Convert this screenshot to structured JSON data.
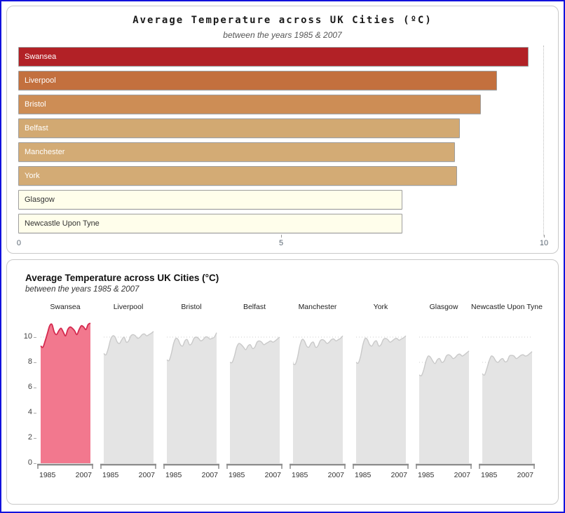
{
  "page": {
    "border_color": "#1212dd",
    "background": "#ffffff"
  },
  "chart_data": [
    {
      "type": "bar",
      "orientation": "horizontal",
      "title": "Average Temperature across UK Cities (ºC)",
      "subtitle": "between the years 1985 & 2007",
      "xlabel": "",
      "ylabel": "",
      "xlim": [
        0,
        10
      ],
      "x_ticks": [
        {
          "label": "0",
          "pos": 0
        },
        {
          "label": "5",
          "pos": 50
        },
        {
          "label": "10",
          "pos": 100
        }
      ],
      "grid": "dotted vertical line at 10 only",
      "bars": [
        {
          "name": "Swansea",
          "value": 9.7,
          "color": "#b22126",
          "text_color": "#ffffff"
        },
        {
          "name": "Liverpool",
          "value": 9.1,
          "color": "#c3703e",
          "text_color": "#ffffff"
        },
        {
          "name": "Bristol",
          "value": 8.8,
          "color": "#cd8d55",
          "text_color": "#ffffff"
        },
        {
          "name": "Belfast",
          "value": 8.4,
          "color": "#d2a972",
          "text_color": "#ffffff"
        },
        {
          "name": "Manchester",
          "value": 8.3,
          "color": "#d3ab75",
          "text_color": "#ffffff"
        },
        {
          "name": "York",
          "value": 8.35,
          "color": "#d3ab75",
          "text_color": "#ffffff"
        },
        {
          "name": "Glasgow",
          "value": 7.3,
          "color": "#fffeeb",
          "text_color": "#333333"
        },
        {
          "name": "Newcastle Upon Tyne",
          "value": 7.3,
          "color": "#fffeeb",
          "text_color": "#333333"
        }
      ]
    },
    {
      "type": "area",
      "layout": "small-multiples",
      "title": "Average Temperature across UK Cities (°C)",
      "subtitle": "between the years 1985 & 2007",
      "ylim": [
        0,
        12
      ],
      "y_ticks": [
        0,
        2,
        4,
        6,
        8,
        10
      ],
      "x_labels": [
        "1985",
        "2007"
      ],
      "x_range": [
        1985,
        2007
      ],
      "grid": "dotted horizontal lines at 2,4,6,8,10",
      "highlight_style": {
        "fill": "#f2788e",
        "stroke": "#d52a4f"
      },
      "muted_style": {
        "fill": "#e4e4e4",
        "stroke": "#c9c9c9"
      },
      "series": [
        {
          "name": "Swansea",
          "highlighted": true,
          "values": [
            9.3,
            9.2,
            9.7,
            10.3,
            10.9,
            11.0,
            10.4,
            10.2,
            10.5,
            10.7,
            10.4,
            10.1,
            10.6,
            10.8,
            10.7,
            10.5,
            10.2,
            10.6,
            10.9,
            10.8,
            10.6,
            11.0,
            11.1
          ]
        },
        {
          "name": "Liverpool",
          "highlighted": false,
          "values": [
            8.7,
            8.6,
            9.1,
            9.8,
            10.1,
            10.0,
            9.6,
            9.5,
            9.8,
            10.0,
            9.6,
            9.7,
            10.1,
            10.2,
            10.1,
            9.9,
            10.0,
            10.2,
            10.25,
            10.1,
            10.2,
            10.3,
            10.45
          ]
        },
        {
          "name": "Bristol",
          "highlighted": false,
          "values": [
            8.2,
            8.15,
            8.7,
            9.5,
            9.9,
            9.8,
            9.4,
            9.3,
            9.7,
            9.8,
            9.4,
            9.5,
            9.9,
            10.0,
            9.9,
            9.7,
            9.8,
            10.0,
            10.0,
            9.85,
            9.9,
            10.0,
            10.35
          ]
        },
        {
          "name": "Belfast",
          "highlighted": false,
          "values": [
            8.0,
            8.0,
            8.5,
            9.2,
            9.5,
            9.4,
            9.2,
            9.0,
            9.3,
            9.4,
            9.1,
            9.2,
            9.6,
            9.7,
            9.6,
            9.4,
            9.5,
            9.6,
            9.7,
            9.6,
            9.7,
            9.85,
            10.0
          ]
        },
        {
          "name": "Manchester",
          "highlighted": false,
          "values": [
            7.9,
            7.85,
            8.4,
            9.3,
            9.8,
            9.7,
            9.3,
            9.2,
            9.5,
            9.6,
            9.2,
            9.3,
            9.7,
            9.8,
            9.7,
            9.5,
            9.6,
            9.8,
            9.85,
            9.7,
            9.8,
            9.9,
            10.1
          ]
        },
        {
          "name": "York",
          "highlighted": false,
          "values": [
            8.0,
            7.95,
            8.5,
            9.4,
            9.9,
            9.8,
            9.4,
            9.3,
            9.6,
            9.7,
            9.3,
            9.4,
            9.8,
            9.9,
            9.8,
            9.6,
            9.7,
            9.85,
            9.9,
            9.75,
            9.85,
            9.95,
            10.1
          ]
        },
        {
          "name": "Glasgow",
          "highlighted": false,
          "values": [
            7.0,
            6.95,
            7.4,
            8.1,
            8.5,
            8.4,
            8.1,
            7.9,
            8.2,
            8.3,
            8.0,
            8.1,
            8.5,
            8.6,
            8.5,
            8.3,
            8.4,
            8.6,
            8.65,
            8.5,
            8.6,
            8.75,
            8.9
          ]
        },
        {
          "name": "Newcastle Upon Tyne",
          "highlighted": false,
          "values": [
            7.1,
            7.0,
            7.5,
            8.1,
            8.5,
            8.4,
            8.1,
            8.0,
            8.2,
            8.3,
            8.05,
            8.1,
            8.5,
            8.55,
            8.5,
            8.3,
            8.4,
            8.55,
            8.6,
            8.5,
            8.55,
            8.7,
            8.85
          ]
        }
      ]
    }
  ]
}
